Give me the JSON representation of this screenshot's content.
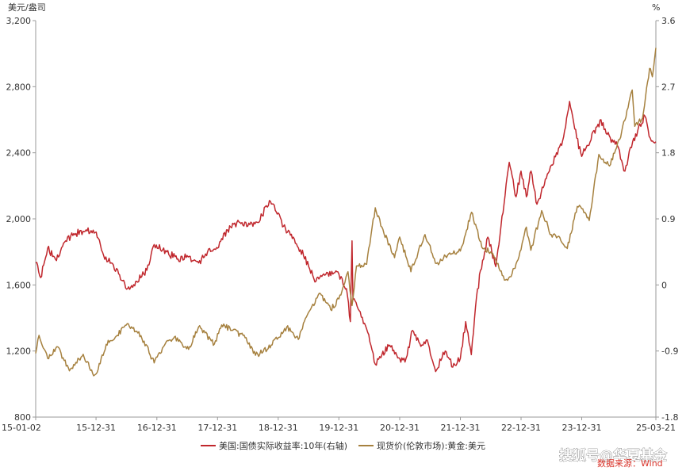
{
  "chart_data": {
    "type": "line",
    "left_axis": {
      "unit": "美元/盎司",
      "ticks": [
        "3,200",
        "2,800",
        "2,400",
        "2,000",
        "1,600",
        "1,200",
        "800"
      ],
      "tick_values": [
        3200,
        2800,
        2400,
        2000,
        1600,
        1200,
        800
      ],
      "range": [
        800,
        3200
      ]
    },
    "right_axis": {
      "unit": "%",
      "ticks": [
        "3.6",
        "2.7",
        "1.8",
        "0.9",
        "0",
        "-0.9",
        "-1.8"
      ],
      "tick_values": [
        3.6,
        2.7,
        1.8,
        0.9,
        0,
        -0.9,
        -1.8
      ],
      "range": [
        -1.8,
        3.6
      ]
    },
    "x_axis": {
      "ticks": [
        "15-01-02",
        "15-12-31",
        "16-12-31",
        "17-12-31",
        "18-12-31",
        "19-12-31",
        "20-12-31",
        "21-12-31",
        "22-12-31",
        "23-12-31",
        "25-03-21"
      ],
      "tick_dates": [
        "2015-01-02",
        "2015-12-31",
        "2016-12-31",
        "2017-12-31",
        "2018-12-31",
        "2019-12-31",
        "2020-12-31",
        "2021-12-31",
        "2022-12-31",
        "2023-12-31",
        "2025-03-21"
      ]
    },
    "series": [
      {
        "name": "美国:国债实际收益率:10年(右轴)",
        "axis": "right",
        "color": "#c0272d",
        "points": [
          [
            "2015-01-02",
            0.3
          ],
          [
            "2015-02-01",
            0.1
          ],
          [
            "2015-03-15",
            0.5
          ],
          [
            "2015-05-01",
            0.35
          ],
          [
            "2015-07-01",
            0.6
          ],
          [
            "2015-09-01",
            0.7
          ],
          [
            "2015-11-01",
            0.75
          ],
          [
            "2016-01-01",
            0.72
          ],
          [
            "2016-02-15",
            0.4
          ],
          [
            "2016-04-01",
            0.3
          ],
          [
            "2016-05-15",
            0.15
          ],
          [
            "2016-07-08",
            -0.05
          ],
          [
            "2016-09-01",
            0.05
          ],
          [
            "2016-11-01",
            0.2
          ],
          [
            "2016-12-15",
            0.55
          ],
          [
            "2017-03-01",
            0.45
          ],
          [
            "2017-05-01",
            0.35
          ],
          [
            "2017-07-01",
            0.4
          ],
          [
            "2017-09-08",
            0.3
          ],
          [
            "2017-11-01",
            0.45
          ],
          [
            "2018-01-01",
            0.5
          ],
          [
            "2018-03-01",
            0.75
          ],
          [
            "2018-05-15",
            0.85
          ],
          [
            "2018-07-01",
            0.8
          ],
          [
            "2018-09-01",
            0.85
          ],
          [
            "2018-11-08",
            1.15
          ],
          [
            "2018-12-31",
            0.98
          ],
          [
            "2019-02-01",
            0.8
          ],
          [
            "2019-04-01",
            0.65
          ],
          [
            "2019-06-01",
            0.4
          ],
          [
            "2019-08-15",
            0.05
          ],
          [
            "2019-10-01",
            0.15
          ],
          [
            "2019-12-31",
            0.15
          ],
          [
            "2020-02-15",
            -0.05
          ],
          [
            "2020-03-09",
            -0.5
          ],
          [
            "2020-03-19",
            0.6
          ],
          [
            "2020-03-25",
            -0.2
          ],
          [
            "2020-05-01",
            -0.35
          ],
          [
            "2020-06-15",
            -0.6
          ],
          [
            "2020-08-06",
            -1.08
          ],
          [
            "2020-09-15",
            -0.95
          ],
          [
            "2020-11-01",
            -0.82
          ],
          [
            "2020-12-31",
            -1.0
          ],
          [
            "2021-02-01",
            -1.05
          ],
          [
            "2021-03-18",
            -0.62
          ],
          [
            "2021-05-01",
            -0.8
          ],
          [
            "2021-06-15",
            -0.75
          ],
          [
            "2021-08-04",
            -1.18
          ],
          [
            "2021-10-01",
            -0.9
          ],
          [
            "2021-11-15",
            -1.12
          ],
          [
            "2021-12-31",
            -1.0
          ],
          [
            "2022-02-01",
            -0.5
          ],
          [
            "2022-03-07",
            -0.95
          ],
          [
            "2022-04-01",
            -0.3
          ],
          [
            "2022-05-01",
            0.2
          ],
          [
            "2022-06-14",
            0.65
          ],
          [
            "2022-08-01",
            0.25
          ],
          [
            "2022-09-01",
            0.8
          ],
          [
            "2022-10-21",
            1.67
          ],
          [
            "2022-12-01",
            1.2
          ],
          [
            "2022-12-31",
            1.55
          ],
          [
            "2023-02-01",
            1.2
          ],
          [
            "2023-03-01",
            1.55
          ],
          [
            "2023-04-06",
            1.1
          ],
          [
            "2023-06-01",
            1.45
          ],
          [
            "2023-08-01",
            1.8
          ],
          [
            "2023-09-01",
            1.9
          ],
          [
            "2023-10-19",
            2.5
          ],
          [
            "2023-12-01",
            2.0
          ],
          [
            "2023-12-31",
            1.75
          ],
          [
            "2024-02-01",
            1.9
          ],
          [
            "2024-04-25",
            2.25
          ],
          [
            "2024-06-01",
            2.05
          ],
          [
            "2024-08-01",
            1.9
          ],
          [
            "2024-09-16",
            1.55
          ],
          [
            "2024-11-01",
            1.95
          ],
          [
            "2025-01-14",
            2.3
          ],
          [
            "2025-02-15",
            2.0
          ],
          [
            "2025-03-21",
            1.95
          ]
        ]
      },
      {
        "name": "现货价(伦敦市场):黄金:美元",
        "axis": "left",
        "color": "#a6813f",
        "points": [
          [
            "2015-01-02",
            1186
          ],
          [
            "2015-01-22",
            1295
          ],
          [
            "2015-03-15",
            1155
          ],
          [
            "2015-05-15",
            1225
          ],
          [
            "2015-07-24",
            1080
          ],
          [
            "2015-10-15",
            1180
          ],
          [
            "2015-12-17",
            1050
          ],
          [
            "2016-01-01",
            1062
          ],
          [
            "2016-03-01",
            1240
          ],
          [
            "2016-05-01",
            1290
          ],
          [
            "2016-07-06",
            1366
          ],
          [
            "2016-09-01",
            1320
          ],
          [
            "2016-10-15",
            1260
          ],
          [
            "2016-12-15",
            1128
          ],
          [
            "2017-02-15",
            1235
          ],
          [
            "2017-04-15",
            1285
          ],
          [
            "2017-07-10",
            1210
          ],
          [
            "2017-09-08",
            1346
          ],
          [
            "2017-12-12",
            1242
          ],
          [
            "2018-01-25",
            1358
          ],
          [
            "2018-04-01",
            1325
          ],
          [
            "2018-06-15",
            1280
          ],
          [
            "2018-08-16",
            1174
          ],
          [
            "2018-10-01",
            1195
          ],
          [
            "2018-12-31",
            1280
          ],
          [
            "2019-02-20",
            1345
          ],
          [
            "2019-05-01",
            1270
          ],
          [
            "2019-06-25",
            1420
          ],
          [
            "2019-09-04",
            1550
          ],
          [
            "2019-11-12",
            1450
          ],
          [
            "2019-12-31",
            1515
          ],
          [
            "2020-02-24",
            1680
          ],
          [
            "2020-03-19",
            1475
          ],
          [
            "2020-04-15",
            1715
          ],
          [
            "2020-06-15",
            1725
          ],
          [
            "2020-08-06",
            2067
          ],
          [
            "2020-09-15",
            1950
          ],
          [
            "2020-11-30",
            1765
          ],
          [
            "2020-12-31",
            1890
          ],
          [
            "2021-03-08",
            1680
          ],
          [
            "2021-06-01",
            1905
          ],
          [
            "2021-08-09",
            1730
          ],
          [
            "2021-10-15",
            1780
          ],
          [
            "2021-12-31",
            1805
          ],
          [
            "2022-03-08",
            2040
          ],
          [
            "2022-05-15",
            1820
          ],
          [
            "2022-07-01",
            1800
          ],
          [
            "2022-09-28",
            1630
          ],
          [
            "2022-11-01",
            1650
          ],
          [
            "2022-12-31",
            1813
          ],
          [
            "2023-02-01",
            1950
          ],
          [
            "2023-02-28",
            1810
          ],
          [
            "2023-05-04",
            2050
          ],
          [
            "2023-06-30",
            1905
          ],
          [
            "2023-08-15",
            1895
          ],
          [
            "2023-10-05",
            1820
          ],
          [
            "2023-12-04",
            2075
          ],
          [
            "2023-12-31",
            2062
          ],
          [
            "2024-02-14",
            1990
          ],
          [
            "2024-04-12",
            2390
          ],
          [
            "2024-06-15",
            2320
          ],
          [
            "2024-08-15",
            2480
          ],
          [
            "2024-10-30",
            2780
          ],
          [
            "2024-11-14",
            2560
          ],
          [
            "2024-12-31",
            2610
          ],
          [
            "2025-02-11",
            2910
          ],
          [
            "2025-02-28",
            2860
          ],
          [
            "2025-03-21",
            3035
          ]
        ]
      }
    ],
    "legend": {
      "position": "bottom",
      "items": [
        "美国:国债实际收益率:10年(右轴)",
        "现货价(伦敦市场):黄金:美元"
      ]
    },
    "grid": false
  },
  "watermark": "搜狐号@华夏基金",
  "source": "数据来源：Wind"
}
